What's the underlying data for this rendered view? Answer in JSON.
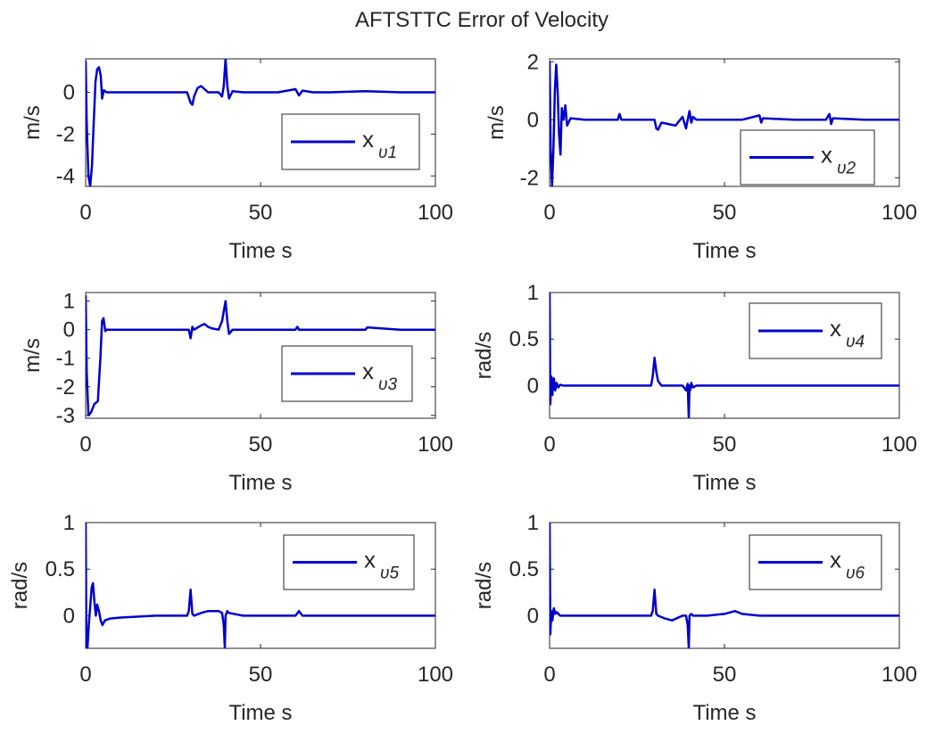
{
  "figure": {
    "title": "AFTSTTC Error of Velocity"
  },
  "chart_data": [
    {
      "type": "line",
      "panel": "v1",
      "title": "",
      "xlabel": "Time s",
      "ylabel": "m/s",
      "xlim": [
        0,
        100
      ],
      "ylim": [
        -4.5,
        1.6
      ],
      "xticks": [
        0,
        50,
        100
      ],
      "yticks": [
        -4,
        -2,
        0
      ],
      "grid": false,
      "legend_position": "right",
      "series": [
        {
          "name": "x_v1",
          "legend_main": "x",
          "legend_sub": "υ1",
          "color": "#0000cc",
          "x": [
            0,
            0.3,
            0.8,
            1.3,
            1.8,
            2.3,
            2.8,
            3.3,
            3.8,
            4.3,
            4.7,
            5.2,
            6,
            10,
            20,
            29,
            30,
            30.5,
            31,
            32,
            33,
            34,
            35,
            38,
            39,
            39.5,
            40,
            40.5,
            41,
            42,
            45,
            55,
            60,
            61,
            62,
            65,
            70,
            80,
            90,
            100
          ],
          "y": [
            1.5,
            -1.5,
            -4.0,
            -4.5,
            -3.5,
            -1.5,
            0.5,
            1.1,
            1.2,
            0.8,
            -0.3,
            0.1,
            0.0,
            0.0,
            0.0,
            0.0,
            -0.5,
            -0.6,
            -0.2,
            0.2,
            0.3,
            0.15,
            0.0,
            0.0,
            -0.2,
            0.3,
            1.6,
            0.3,
            -0.3,
            0.05,
            0.0,
            0.0,
            0.15,
            -0.15,
            0.08,
            0.0,
            0.0,
            0.05,
            0.0,
            0.0
          ]
        }
      ]
    },
    {
      "type": "line",
      "panel": "v2",
      "title": "",
      "xlabel": "Time s",
      "ylabel": "m/s",
      "xlim": [
        0,
        100
      ],
      "ylim": [
        -2.3,
        2.1
      ],
      "xticks": [
        0,
        50,
        100
      ],
      "yticks": [
        -2,
        0,
        2
      ],
      "grid": false,
      "legend_position": "right",
      "series": [
        {
          "name": "x_v2",
          "legend_main": "x",
          "legend_sub": "υ2",
          "color": "#0000cc",
          "x": [
            0,
            0.3,
            0.7,
            1.1,
            1.5,
            1.9,
            2.3,
            2.7,
            3.1,
            3.5,
            4,
            4.5,
            5,
            6,
            10,
            19.5,
            20,
            20.5,
            30,
            30.5,
            31,
            32,
            34,
            36,
            38,
            39,
            40,
            40.5,
            41,
            42,
            45,
            55,
            60,
            60.5,
            61,
            70,
            79,
            80,
            80.5,
            81,
            90,
            100
          ],
          "y": [
            2.0,
            -1.0,
            -2.3,
            -1.0,
            1.0,
            1.9,
            1.0,
            -0.5,
            -1.2,
            0.4,
            0.0,
            0.5,
            -0.2,
            0.05,
            0.0,
            0.0,
            0.2,
            0.0,
            0.0,
            -0.3,
            -0.35,
            -0.1,
            -0.15,
            -0.2,
            0.1,
            -0.3,
            0.3,
            -0.1,
            0.1,
            0.0,
            0.0,
            0.0,
            0.15,
            -0.1,
            0.05,
            0.0,
            0.0,
            0.2,
            -0.15,
            0.05,
            0.0,
            0.0
          ]
        }
      ]
    },
    {
      "type": "line",
      "panel": "v3",
      "title": "",
      "xlabel": "Time s",
      "ylabel": "m/s",
      "xlim": [
        0,
        100
      ],
      "ylim": [
        -3.1,
        1.3
      ],
      "xticks": [
        0,
        50,
        100
      ],
      "yticks": [
        -3,
        -2,
        -1,
        0,
        1
      ],
      "grid": false,
      "legend_position": "right",
      "series": [
        {
          "name": "x_v3",
          "legend_main": "x",
          "legend_sub": "υ3",
          "color": "#0000cc",
          "x": [
            0,
            0.3,
            0.8,
            1.5,
            2.5,
            3.5,
            4.2,
            4.7,
            5.1,
            5.6,
            6,
            10,
            20,
            29.5,
            30,
            30.5,
            31,
            33,
            34,
            35,
            36,
            38,
            39,
            40,
            40.5,
            41,
            42,
            45,
            55,
            60,
            60.5,
            61,
            70,
            80,
            80.5,
            90,
            100
          ],
          "y": [
            1.2,
            -1.5,
            -3.0,
            -2.9,
            -2.6,
            -2.5,
            -1.0,
            0.3,
            0.4,
            -0.05,
            0.0,
            0.0,
            0.0,
            0.0,
            -0.3,
            0.1,
            0.0,
            0.15,
            0.2,
            0.1,
            0.05,
            0.0,
            0.3,
            1.0,
            0.3,
            -0.15,
            0.0,
            0.0,
            0.0,
            0.0,
            0.1,
            0.0,
            0.0,
            0.0,
            0.08,
            0.0,
            0.0
          ]
        }
      ]
    },
    {
      "type": "line",
      "panel": "v4",
      "title": "",
      "xlabel": "Time s",
      "ylabel": "rad/s",
      "xlim": [
        0,
        100
      ],
      "ylim": [
        -0.35,
        1.0
      ],
      "xticks": [
        0,
        50,
        100
      ],
      "yticks": [
        0,
        0.5,
        1
      ],
      "grid": false,
      "legend_position": "top-right",
      "series": [
        {
          "name": "x_v4",
          "legend_main": "x",
          "legend_sub": "υ4",
          "color": "#0000cc",
          "x": [
            0,
            0.2,
            0.5,
            0.8,
            1.2,
            1.6,
            2,
            2.5,
            3,
            4,
            10,
            20,
            29,
            29.5,
            30,
            30.5,
            31,
            32,
            35,
            38,
            39,
            39.5,
            39.8,
            40,
            40.2,
            40.5,
            41,
            42,
            45,
            55,
            60,
            70,
            80,
            90,
            100
          ],
          "y": [
            1.0,
            -0.2,
            0.1,
            -0.1,
            0.08,
            -0.05,
            0.03,
            -0.02,
            0.01,
            0.0,
            0.0,
            0.0,
            0.0,
            0.1,
            0.3,
            0.15,
            0.05,
            0.0,
            0.0,
            0.0,
            -0.05,
            0.02,
            -0.35,
            0.0,
            -0.05,
            0.03,
            -0.02,
            0.0,
            0.0,
            0.0,
            0.0,
            0.0,
            0.0,
            0.0,
            0.0
          ]
        }
      ]
    },
    {
      "type": "line",
      "panel": "v5",
      "title": "",
      "xlabel": "Time s",
      "ylabel": "rad/s",
      "xlim": [
        0,
        100
      ],
      "ylim": [
        -0.35,
        1.0
      ],
      "xticks": [
        0,
        50,
        100
      ],
      "yticks": [
        0,
        0.5,
        1
      ],
      "grid": false,
      "legend_position": "top-right",
      "series": [
        {
          "name": "x_v5",
          "legend_main": "x",
          "legend_sub": "υ5",
          "color": "#0000cc",
          "x": [
            0,
            0.2,
            0.5,
            0.9,
            1.3,
            1.7,
            2.1,
            2.5,
            2.9,
            3.3,
            3.8,
            4.3,
            4.8,
            5.5,
            7,
            10,
            20,
            29,
            29.5,
            30,
            30.5,
            31,
            33,
            35,
            38,
            39,
            39.5,
            39.8,
            40,
            40.5,
            41,
            45,
            50,
            60,
            61,
            62,
            70,
            80,
            90,
            100
          ],
          "y": [
            1.0,
            -0.3,
            -0.35,
            -0.1,
            0.1,
            0.3,
            0.35,
            0.15,
            0.0,
            0.12,
            0.05,
            -0.05,
            -0.1,
            -0.05,
            -0.03,
            -0.02,
            0.0,
            0.0,
            0.05,
            0.28,
            0.02,
            0.0,
            0.03,
            0.05,
            0.05,
            0.03,
            -0.1,
            -0.35,
            0.0,
            0.05,
            0.03,
            0.0,
            0.0,
            0.0,
            0.05,
            0.0,
            0.0,
            0.0,
            0.0,
            0.0
          ]
        }
      ]
    },
    {
      "type": "line",
      "panel": "v6",
      "title": "",
      "xlabel": "Time s",
      "ylabel": "rad/s",
      "xlim": [
        0,
        100
      ],
      "ylim": [
        -0.35,
        1.0
      ],
      "xticks": [
        0,
        50,
        100
      ],
      "yticks": [
        0,
        0.5,
        1
      ],
      "grid": false,
      "legend_position": "top-right",
      "series": [
        {
          "name": "x_v6",
          "legend_main": "x",
          "legend_sub": "υ6",
          "color": "#0000cc",
          "x": [
            0,
            0.2,
            0.5,
            0.8,
            1.2,
            1.6,
            2,
            3,
            4,
            10,
            20,
            29,
            29.5,
            30,
            30.5,
            31,
            33,
            35,
            38,
            39,
            39.5,
            39.8,
            40,
            40.5,
            41,
            45,
            50,
            53,
            55,
            60,
            70,
            80,
            90,
            100
          ],
          "y": [
            1.0,
            -0.2,
            0.05,
            -0.05,
            0.08,
            0.02,
            0.04,
            0.0,
            0.0,
            0.0,
            0.0,
            0.0,
            0.05,
            0.28,
            0.02,
            0.0,
            -0.03,
            -0.05,
            0.0,
            0.0,
            -0.1,
            -0.35,
            0.0,
            0.02,
            0.0,
            0.0,
            0.02,
            0.05,
            0.02,
            0.0,
            0.0,
            0.0,
            0.0,
            0.0
          ]
        }
      ]
    }
  ]
}
